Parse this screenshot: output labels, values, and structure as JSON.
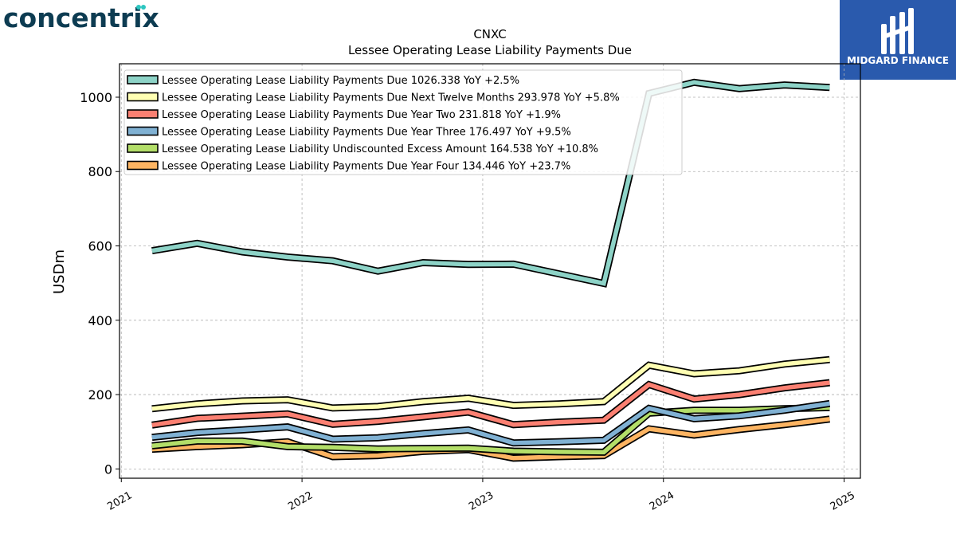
{
  "logos": {
    "company": "concentrix",
    "brand": "MIDGARD FINANCE"
  },
  "colors": {
    "company_text": "#0d3c52",
    "company_dot": "#2cc6c0",
    "brand_bg": "#2a5aad"
  },
  "chart_data": {
    "type": "line",
    "title": "CNXC",
    "subtitle": "Lessee Operating Lease Liability Payments Due",
    "ylabel": "USDm",
    "xlabel": "",
    "xlim": [
      2020.99,
      2025.09
    ],
    "ylim": [
      -25,
      1090
    ],
    "x_ticks": [
      2021,
      2022,
      2023,
      2024,
      2025
    ],
    "y_ticks": [
      0,
      200,
      400,
      600,
      800,
      1000
    ],
    "grid": true,
    "legend_position": "top-left",
    "x": [
      2021.17,
      2021.42,
      2021.67,
      2021.92,
      2022.17,
      2022.42,
      2022.67,
      2022.92,
      2023.17,
      2023.42,
      2023.67,
      2023.92,
      2024.17,
      2024.42,
      2024.67,
      2024.92
    ],
    "series": [
      {
        "name": "Lessee Operating Lease Liability Payments Due",
        "label": "Lessee Operating Lease Liability Payments Due  1026.338 YoY +2.5%",
        "color": "#8dd3c7",
        "values": [
          587,
          607,
          584,
          570,
          560,
          532,
          555,
          550,
          551,
          525,
          499,
          1010,
          1040,
          1023,
          1033,
          1026
        ]
      },
      {
        "name": "Lessee Operating Lease Liability Payments Due Next Twelve Months",
        "label": "Lessee Operating Lease Liability Payments Due Next Twelve Months  293.978 YoY +5.8%",
        "color": "#ffffb3",
        "values": [
          162,
          175,
          183,
          186,
          164,
          168,
          181,
          190,
          171,
          175,
          181,
          279,
          256,
          264,
          282,
          294
        ]
      },
      {
        "name": "Lessee Operating Lease Liability Payments Due Year Two",
        "label": "Lessee Operating Lease Liability Payments Due Year Two  231.818 YoY +1.9%",
        "color": "#fb8072",
        "values": [
          118,
          136,
          142,
          148,
          120,
          128,
          140,
          153,
          119,
          126,
          131,
          227,
          188,
          200,
          218,
          232
        ]
      },
      {
        "name": "Lessee Operating Lease Liability Payments Due Year Three",
        "label": "Lessee Operating Lease Liability Payments Due Year Three  176.497 YoY +9.5%",
        "color": "#80b1d3",
        "values": [
          85,
          98,
          105,
          113,
          80,
          84,
          95,
          105,
          70,
          73,
          77,
          163,
          135,
          143,
          158,
          176
        ]
      },
      {
        "name": "Lessee Operating Lease Liability Undiscounted Excess Amount",
        "label": "Lessee Operating Lease Liability Undiscounted Excess Amount  164.538 YoY +10.8%",
        "color": "#b3de69",
        "values": [
          62,
          75,
          75,
          60,
          58,
          54,
          55,
          56,
          48,
          46,
          45,
          150,
          158,
          158,
          162,
          165
        ]
      },
      {
        "name": "Lessee Operating Lease Liability Payments Due Year Four",
        "label": "Lessee Operating Lease Liability Payments Due Year Four  134.446 YoY +23.7%",
        "color": "#fdb462",
        "values": [
          53,
          60,
          65,
          73,
          33,
          36,
          47,
          52,
          29,
          33,
          36,
          108,
          91,
          106,
          119,
          134
        ]
      }
    ]
  }
}
